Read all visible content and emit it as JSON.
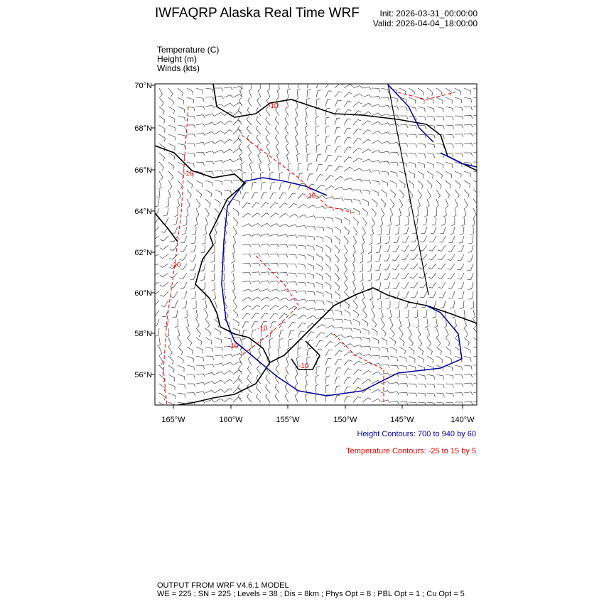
{
  "header": {
    "title": "IWFAQRP Alaska Real Time WRF",
    "init": "Init: 2026-03-31_00:00:00",
    "valid": "Valid: 2026-04-04_18:00:00"
  },
  "fields": [
    {
      "label": "Temperature   (C)"
    },
    {
      "label": "Height   (m)"
    },
    {
      "label": "Winds   (kts)"
    }
  ],
  "map": {
    "lat_ticks": [
      "70°N",
      "68°N",
      "66°N",
      "64°N",
      "62°N",
      "60°N",
      "58°N",
      "56°N"
    ],
    "lon_ticks": [
      "165°W",
      "160°W",
      "155°W",
      "150°W",
      "145°W",
      "140°W"
    ],
    "temperature_labels": [
      "-10",
      "-10",
      "-10",
      "-10",
      "-10",
      "-10",
      "-10"
    ],
    "colors": {
      "height": "#0000a0",
      "temperature": "#ff0000",
      "coast": "#000000",
      "barbs": "#000000"
    }
  },
  "legend": {
    "height": "Height Contours: 700 to 940 by 60",
    "temperature": "Temperature Contours: -25 to 15 by 5"
  },
  "footer": {
    "line1": "OUTPUT FROM WRF V4.6.1 MODEL",
    "line2": "WE = 225 ; SN = 225 ; Levels = 38 ; Dis = 8km ; Phys Opt = 8 ; PBL Opt = 1 ; Cu Opt = 5"
  }
}
